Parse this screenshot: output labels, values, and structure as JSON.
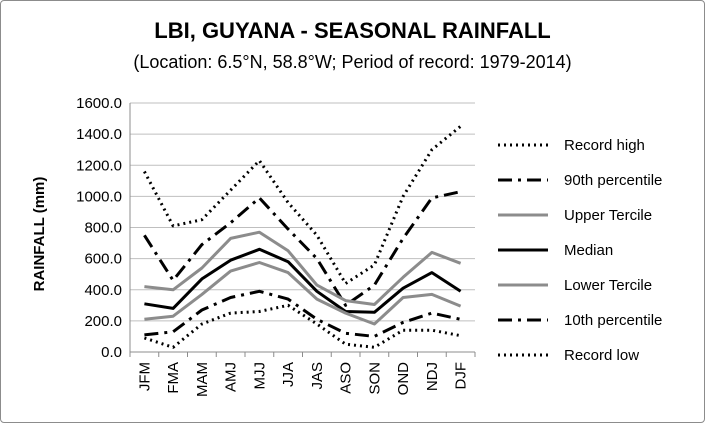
{
  "chart_data": {
    "type": "line",
    "title": "LBI, GUYANA - SEASONAL RAINFALL",
    "subtitle": "(Location: 6.5°N, 58.8°W; Period of record: 1979-2014)",
    "ylabel": "RAINFALL (mm)",
    "xlabel": "",
    "ylim": [
      0,
      1600
    ],
    "yticks": [
      "0.0",
      "200.0",
      "400.0",
      "600.0",
      "800.0",
      "1000.0",
      "1200.0",
      "1400.0",
      "1600.0"
    ],
    "grid": true,
    "legend_position": "right",
    "categories": [
      "JFM",
      "FMA",
      "MAM",
      "AMJ",
      "MJJ",
      "JJA",
      "JAS",
      "ASO",
      "SON",
      "OND",
      "NDJ",
      "DJF"
    ],
    "series": [
      {
        "name": "Record high",
        "style": "dotted",
        "color": "#000000",
        "values": [
          1160,
          810,
          850,
          1040,
          1230,
          960,
          750,
          440,
          560,
          1000,
          1300,
          1450
        ]
      },
      {
        "name": "90th percentile",
        "style": "dashdot",
        "color": "#000000",
        "values": [
          750,
          460,
          690,
          830,
          990,
          790,
          600,
          300,
          430,
          730,
          990,
          1030
        ]
      },
      {
        "name": "Upper Tercile",
        "style": "solid",
        "color": "#8c8c8c",
        "values": [
          420,
          400,
          540,
          730,
          770,
          650,
          430,
          330,
          305,
          480,
          640,
          570
        ]
      },
      {
        "name": "Median",
        "style": "solid",
        "color": "#000000",
        "values": [
          310,
          280,
          470,
          590,
          660,
          580,
          390,
          260,
          255,
          410,
          510,
          390
        ]
      },
      {
        "name": "Lower Tercile",
        "style": "solid",
        "color": "#8c8c8c",
        "values": [
          210,
          230,
          370,
          520,
          575,
          510,
          340,
          250,
          180,
          350,
          370,
          295
        ]
      },
      {
        "name": "10th percentile",
        "style": "dashdot",
        "color": "#000000",
        "values": [
          110,
          130,
          270,
          350,
          390,
          340,
          210,
          120,
          100,
          190,
          250,
          210
        ]
      },
      {
        "name": "Record low",
        "style": "dotted",
        "color": "#000000",
        "values": [
          90,
          30,
          180,
          250,
          260,
          300,
          180,
          50,
          30,
          140,
          140,
          105
        ]
      }
    ]
  }
}
